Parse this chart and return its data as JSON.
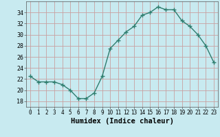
{
  "x": [
    0,
    1,
    2,
    3,
    4,
    5,
    6,
    7,
    8,
    9,
    10,
    11,
    12,
    13,
    14,
    15,
    16,
    17,
    18,
    19,
    20,
    21,
    22,
    23
  ],
  "y": [
    22.5,
    21.5,
    21.5,
    21.5,
    21,
    20,
    18.5,
    18.5,
    19.5,
    22.5,
    27.5,
    29,
    30.5,
    31.5,
    33.5,
    34,
    35,
    34.5,
    34.5,
    32.5,
    31.5,
    30,
    28,
    25
  ],
  "line_color": "#2e7d6e",
  "marker": "+",
  "marker_size": 4,
  "bg_color": "#c8eaf0",
  "grid_color": "#c8a0a0",
  "xlabel": "Humidex (Indice chaleur)",
  "xlim": [
    -0.5,
    23.5
  ],
  "ylim": [
    17,
    36
  ],
  "yticks": [
    18,
    20,
    22,
    24,
    26,
    28,
    30,
    32,
    34
  ],
  "xticks": [
    0,
    1,
    2,
    3,
    4,
    5,
    6,
    7,
    8,
    9,
    10,
    11,
    12,
    13,
    14,
    15,
    16,
    17,
    18,
    19,
    20,
    21,
    22,
    23
  ],
  "xlabel_fontsize": 7.5,
  "tick_fontsize": 6,
  "line_width": 1.0
}
